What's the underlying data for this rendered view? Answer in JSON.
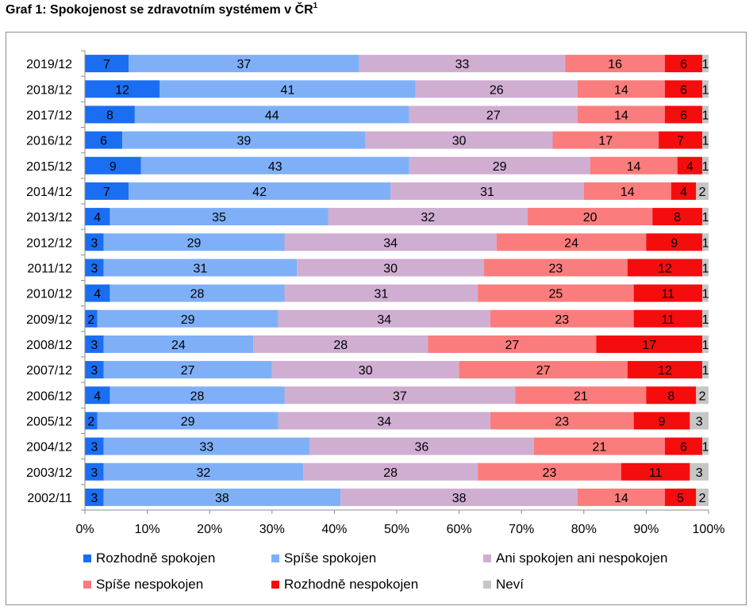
{
  "title": {
    "text": "Graf 1: Spokojenost se zdravotním systémem v ČR",
    "footnote_mark": "1"
  },
  "chart_data": {
    "type": "bar",
    "orientation": "horizontal",
    "stacked": "percent",
    "title": "Graf 1: Spokojenost se zdravotním systémem v ČR",
    "categories": [
      "2019/12",
      "2018/12",
      "2017/12",
      "2016/12",
      "2015/12",
      "2014/12",
      "2013/12",
      "2012/12",
      "2011/12",
      "2010/12",
      "2009/12",
      "2008/12",
      "2007/12",
      "2006/12",
      "2005/12",
      "2004/12",
      "2003/12",
      "2002/11"
    ],
    "series": [
      {
        "name": "Rozhodně spokojen",
        "color": "#1a6ef2",
        "values": [
          7,
          12,
          8,
          6,
          9,
          7,
          4,
          3,
          3,
          4,
          2,
          3,
          3,
          4,
          2,
          3,
          3,
          3
        ]
      },
      {
        "name": "Spíše spokojen",
        "color": "#7fb0f7",
        "values": [
          37,
          41,
          44,
          39,
          43,
          42,
          35,
          29,
          31,
          28,
          29,
          24,
          27,
          28,
          29,
          33,
          32,
          38
        ]
      },
      {
        "name": "Ani spokojen ani nespokojen",
        "color": "#cfaed2",
        "values": [
          33,
          26,
          27,
          30,
          29,
          31,
          32,
          34,
          30,
          31,
          34,
          28,
          30,
          37,
          34,
          36,
          28,
          38
        ]
      },
      {
        "name": "Spíše nespokojen",
        "color": "#fb7c7c",
        "values": [
          16,
          14,
          14,
          17,
          14,
          14,
          20,
          24,
          23,
          25,
          23,
          27,
          27,
          21,
          23,
          21,
          23,
          14
        ]
      },
      {
        "name": "Rozhodně nespokojen",
        "color": "#f50d0d",
        "values": [
          6,
          6,
          6,
          7,
          4,
          4,
          8,
          9,
          12,
          11,
          11,
          17,
          12,
          8,
          9,
          6,
          11,
          5
        ]
      },
      {
        "name": "Neví",
        "color": "#c6c6c6",
        "values": [
          1,
          1,
          1,
          1,
          1,
          2,
          1,
          1,
          1,
          1,
          1,
          1,
          1,
          2,
          3,
          1,
          3,
          2
        ]
      }
    ],
    "xlim": [
      0,
      100
    ],
    "xticks": [
      "0%",
      "10%",
      "20%",
      "30%",
      "40%",
      "50%",
      "60%",
      "70%",
      "80%",
      "90%",
      "100%"
    ],
    "grid": false,
    "legend_position": "bottom"
  }
}
